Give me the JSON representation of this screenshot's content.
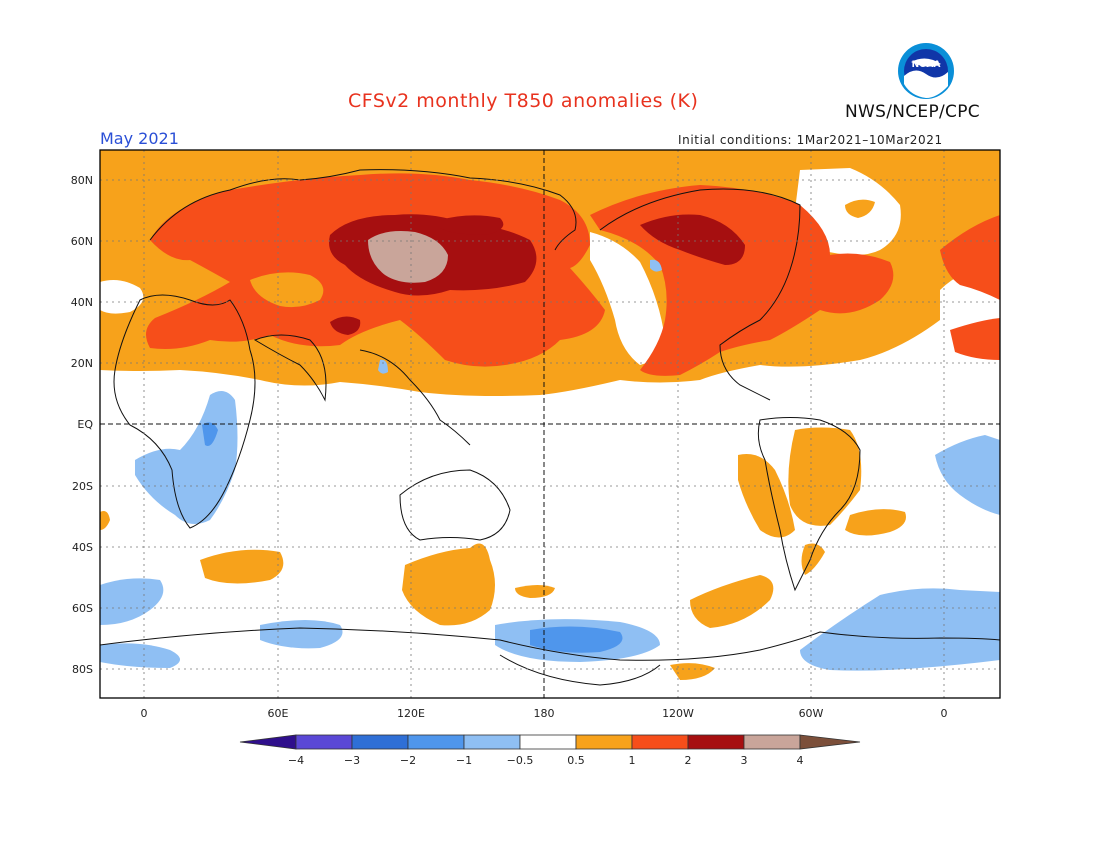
{
  "header": {
    "title": "CFSv2 monthly T850 anomalies (K)",
    "month": "May 2021",
    "initial_conditions": "Initial conditions: 1Mar2021–10Mar2021",
    "agency": "NWS/NCEP/CPC",
    "logo_text": "NOAA",
    "logo_icon": "noaa-logo-icon"
  },
  "map": {
    "lat_ticks": [
      "80N",
      "60N",
      "40N",
      "20N",
      "EQ",
      "20S",
      "40S",
      "60S",
      "80S"
    ],
    "lon_ticks": [
      "0",
      "60E",
      "120E",
      "180",
      "120W",
      "60W",
      "0"
    ]
  },
  "colorbar": {
    "labels": [
      "−4",
      "−3",
      "−2",
      "−1",
      "−0.5",
      "0.5",
      "1",
      "2",
      "3",
      "4"
    ],
    "colors": {
      "below_minus4": "#2f0f8c",
      "minus4_minus3": "#5a48d6",
      "minus3_minus2": "#2f6fd6",
      "minus2_minus1": "#4f96ec",
      "minus1_minus05": "#8fbff3",
      "neutral": "#ffffff",
      "p05_p1": "#f7a21b",
      "p1_p2": "#f64e1a",
      "p2_p3": "#a60f10",
      "p3_p4": "#c9a59a",
      "above_4": "#7c4f3a"
    }
  }
}
